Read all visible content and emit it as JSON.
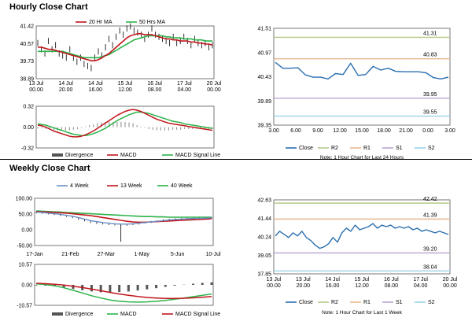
{
  "sections": {
    "hourly_title": "Hourly Close Chart",
    "weekly_title": "Weekly Close Chart"
  },
  "colors": {
    "close": "#2a6eb0",
    "ma_short": "#c0161c",
    "ma_long": "#2db34a",
    "r2": "#b5c98a",
    "r1": "#e6b88f",
    "s1": "#b9a5cf",
    "s2": "#9ad3e6",
    "divergence": "#9b9b9b",
    "dark_bar": "#555555"
  },
  "chart_data": [
    {
      "id": "hourly_price",
      "type": "line",
      "legend": [
        "20 Hr MA",
        "50 Hrs MA"
      ],
      "y_ticks": [
        "41.42",
        "40.57",
        "39.73",
        "38.89"
      ],
      "x_ticks": [
        "13 Jul\n00.00",
        "14 Jul\n20.00",
        "14 Jul\n16.00",
        "15 Jul\n12.00",
        "16 Jul\n08.00",
        "17 Jul\n04.00",
        "20 Jul\n00.00"
      ],
      "ylim": [
        38.89,
        41.42
      ],
      "series": [
        {
          "name": "Price",
          "values": [
            40.6,
            40.3,
            40.1,
            40.7,
            40.3,
            40.5,
            40.1,
            40.0,
            39.9,
            40.3,
            39.9,
            39.7,
            39.9,
            39.6,
            39.5,
            39.4,
            39.9,
            40.2,
            40.0,
            40.4,
            40.8,
            40.5,
            40.9,
            41.2,
            41.0,
            41.3,
            41.4,
            41.2,
            41.1,
            41.0,
            40.8,
            41.0,
            41.3,
            41.0,
            40.9,
            40.8,
            40.7,
            40.6,
            40.9,
            40.6,
            40.7,
            40.9,
            40.7,
            40.5,
            40.8,
            40.6,
            40.5,
            40.6,
            40.4,
            40.5
          ]
        },
        {
          "name": "20 Hr MA",
          "values": [
            40.4,
            40.4,
            40.35,
            40.3,
            40.3,
            40.25,
            40.2,
            40.15,
            40.1,
            40.05,
            40.0,
            39.95,
            39.9,
            39.85,
            39.8,
            39.75,
            39.75,
            39.8,
            39.9,
            40.0,
            40.1,
            40.25,
            40.4,
            40.55,
            40.7,
            40.85,
            40.95,
            41.0,
            41.05,
            41.05,
            41.0,
            41.0,
            41.0,
            40.95,
            40.9,
            40.85,
            40.8,
            40.8,
            40.75,
            40.75,
            40.7,
            40.7,
            40.7,
            40.65,
            40.65,
            40.6,
            40.6,
            40.55,
            40.55,
            40.5
          ]
        },
        {
          "name": "50 Hrs MA",
          "values": [
            40.2,
            40.2,
            40.2,
            40.2,
            40.2,
            40.2,
            40.2,
            40.2,
            40.15,
            40.1,
            40.05,
            40.0,
            39.95,
            39.9,
            39.9,
            39.9,
            39.9,
            39.9,
            39.95,
            40.0,
            40.05,
            40.15,
            40.25,
            40.35,
            40.45,
            40.55,
            40.65,
            40.75,
            40.8,
            40.85,
            40.9,
            40.95,
            40.95,
            40.95,
            40.95,
            40.95,
            40.9,
            40.9,
            40.85,
            40.85,
            40.85,
            40.8,
            40.8,
            40.8,
            40.75,
            40.75,
            40.75,
            40.7,
            40.7,
            40.7
          ]
        }
      ]
    },
    {
      "id": "hourly_macd",
      "type": "line",
      "legend": [
        "Divergence",
        "MACD",
        "MACD Signal Line"
      ],
      "y_ticks": [
        "0.32",
        "0.00",
        "-0.32"
      ],
      "ylim": [
        -0.32,
        0.32
      ],
      "series": [
        {
          "name": "MACD",
          "values": [
            0.03,
            0.02,
            0.0,
            -0.03,
            -0.06,
            -0.08,
            -0.1,
            -0.12,
            -0.14,
            -0.15,
            -0.15,
            -0.14,
            -0.12,
            -0.09,
            -0.06,
            -0.02,
            0.02,
            0.06,
            0.1,
            0.14,
            0.18,
            0.21,
            0.24,
            0.26,
            0.27,
            0.26,
            0.24,
            0.21,
            0.18,
            0.15,
            0.12,
            0.1,
            0.08,
            0.06,
            0.05,
            0.04,
            0.03,
            0.02,
            0.01,
            0.0,
            -0.01,
            -0.02,
            -0.03,
            -0.04,
            -0.05
          ]
        },
        {
          "name": "MACD Signal Line",
          "values": [
            0.05,
            0.04,
            0.03,
            0.01,
            -0.01,
            -0.03,
            -0.05,
            -0.07,
            -0.09,
            -0.11,
            -0.12,
            -0.13,
            -0.13,
            -0.12,
            -0.1,
            -0.08,
            -0.05,
            -0.02,
            0.02,
            0.06,
            0.1,
            0.13,
            0.16,
            0.19,
            0.21,
            0.23,
            0.23,
            0.22,
            0.21,
            0.19,
            0.17,
            0.15,
            0.13,
            0.11,
            0.09,
            0.08,
            0.07,
            0.05,
            0.04,
            0.03,
            0.02,
            0.01,
            0.0,
            -0.01,
            -0.02
          ]
        },
        {
          "name": "Divergence",
          "values": [
            -0.02,
            -0.02,
            -0.03,
            -0.04,
            -0.05,
            -0.05,
            -0.05,
            -0.05,
            -0.05,
            -0.04,
            -0.03,
            -0.01,
            0.01,
            0.03,
            0.04,
            0.06,
            0.07,
            0.08,
            0.08,
            0.08,
            0.08,
            0.08,
            0.08,
            0.07,
            0.06,
            0.03,
            0.01,
            -0.01,
            -0.03,
            -0.04,
            -0.05,
            -0.05,
            -0.05,
            -0.05,
            -0.04,
            -0.04,
            -0.04,
            -0.03,
            -0.03,
            -0.03,
            -0.03,
            -0.03,
            -0.03,
            -0.03,
            -0.03
          ]
        }
      ]
    },
    {
      "id": "hourly_pivot",
      "type": "line",
      "y_ticks": [
        "41.51",
        "40.97",
        "40.43",
        "39.89",
        "39.35"
      ],
      "ylim": [
        39.35,
        41.51
      ],
      "x_ticks": [
        "3.00",
        "6.00",
        "9.00",
        "12.00",
        "15.00",
        "18.00",
        "21.00",
        "0.00",
        "3.00"
      ],
      "levels": [
        {
          "name": "R2",
          "value": 41.31,
          "label": "41.31"
        },
        {
          "name": "R1",
          "value": 40.83,
          "label": "40.83"
        },
        {
          "name": "S1",
          "value": 39.95,
          "label": "39.95"
        },
        {
          "name": "S2",
          "value": 39.55,
          "label": "39.55"
        }
      ],
      "close": [
        40.75,
        40.62,
        40.62,
        40.63,
        40.47,
        40.42,
        40.42,
        40.38,
        40.5,
        40.48,
        40.73,
        40.46,
        40.48,
        40.66,
        40.58,
        40.62,
        40.55,
        40.54,
        40.54,
        40.54,
        40.52,
        40.41,
        40.38,
        40.42
      ],
      "legend": [
        "Close",
        "R2",
        "R1",
        "S1",
        "S2"
      ],
      "note": "Note: 1 Hour Chart for Last 24 Hours"
    },
    {
      "id": "weekly_price",
      "type": "line",
      "legend": [
        "4 Week",
        "13 Week",
        "40 Week"
      ],
      "y_ticks": [
        "100.00",
        "50.00",
        "0.00",
        "-50.00"
      ],
      "x_ticks": [
        "17-Jan",
        "21-Feb",
        "27-Mar",
        "1-May",
        "5-Jun",
        "10-Jul"
      ],
      "ylim": [
        -50,
        100
      ],
      "series": [
        {
          "name": "Price",
          "values": [
            55,
            54,
            52,
            50,
            47,
            44,
            40,
            35,
            30,
            25,
            22,
            20,
            18,
            17,
            15,
            16,
            18,
            20,
            23,
            25,
            27,
            30,
            32,
            33,
            34,
            35,
            36,
            36,
            37,
            38
          ]
        },
        {
          "name": "4 Week",
          "values": [
            56,
            55,
            53,
            51,
            49,
            46,
            43,
            39,
            34,
            29,
            26,
            23,
            21,
            19,
            18,
            18,
            19,
            21,
            23,
            25,
            27,
            29,
            31,
            33,
            34,
            35,
            36,
            36,
            37,
            38
          ]
        },
        {
          "name": "13 Week",
          "values": [
            58,
            57,
            56,
            55,
            54,
            53,
            51,
            49,
            47,
            45,
            42,
            39,
            36,
            33,
            30,
            27,
            25,
            24,
            24,
            25,
            26,
            27,
            28,
            29,
            30,
            31,
            32,
            33,
            34,
            35
          ]
        },
        {
          "name": "40 Week",
          "values": [
            60,
            59,
            58,
            57,
            56,
            55,
            54,
            53,
            52,
            51,
            50,
            49,
            48,
            47,
            46,
            45,
            44,
            43,
            42,
            42,
            41,
            41,
            40,
            40,
            40,
            40,
            40,
            40,
            40,
            40
          ]
        }
      ]
    },
    {
      "id": "weekly_macd",
      "type": "line",
      "legend": [
        "Divergence",
        "MACD",
        "MACD Signal Line"
      ],
      "y_ticks": [
        "10.57",
        "0.00",
        "-10.57"
      ],
      "ylim": [
        -10.57,
        10.57
      ],
      "series": [
        {
          "name": "MACD",
          "values": [
            0.5,
            0.2,
            -0.5,
            -1.5,
            -2.8,
            -4.2,
            -5.6,
            -6.8,
            -7.8,
            -8.4,
            -8.8,
            -8.9,
            -8.8,
            -8.5,
            -8.0,
            -7.4,
            -6.8,
            -6.1,
            -5.4,
            -4.7
          ]
        },
        {
          "name": "MACD Signal Line",
          "values": [
            0.8,
            0.6,
            0.3,
            -0.1,
            -0.7,
            -1.4,
            -2.2,
            -3.0,
            -3.9,
            -4.7,
            -5.4,
            -6.0,
            -6.5,
            -6.8,
            -7.0,
            -7.0,
            -6.9,
            -6.7,
            -6.4,
            -6.0
          ]
        },
        {
          "name": "Divergence",
          "values": [
            -0.3,
            -0.4,
            -0.8,
            -1.4,
            -2.1,
            -2.8,
            -3.4,
            -3.8,
            -3.9,
            -3.7,
            -3.4,
            -2.9,
            -2.3,
            -1.7,
            -1.0,
            -0.4,
            0.1,
            0.6,
            1.0,
            1.3
          ]
        }
      ]
    },
    {
      "id": "weekly_pivot",
      "type": "line",
      "y_ticks": [
        "42.63",
        "41.44",
        "40.24",
        "39.05",
        "37.85"
      ],
      "ylim": [
        37.85,
        42.63
      ],
      "x_ticks": [
        "13 Jul\n00.00",
        "13 Jul\n20.00",
        "14 Jul\n16.00",
        "15 Jul\n12.00",
        "16 Jul\n08.00",
        "17 Jul\n04.00",
        "20 Jul\n00.00"
      ],
      "levels": [
        {
          "name": "R2",
          "value": 42.42,
          "label": "42.42"
        },
        {
          "name": "R1",
          "value": 41.39,
          "label": "41.39"
        },
        {
          "name": "S1",
          "value": 39.2,
          "label": "39.20"
        },
        {
          "name": "S2",
          "value": 38.04,
          "label": "38.04"
        }
      ],
      "close": [
        40.3,
        40.6,
        40.4,
        40.2,
        40.5,
        40.3,
        40.6,
        40.2,
        40.0,
        39.7,
        39.5,
        39.6,
        39.8,
        40.2,
        39.9,
        40.5,
        40.8,
        40.6,
        41.0,
        40.7,
        40.8,
        40.9,
        41.1,
        40.8,
        41.0,
        40.9,
        41.0,
        40.8,
        40.9,
        40.8,
        40.9,
        40.7,
        40.8,
        40.6,
        40.7,
        40.6,
        40.5,
        40.6,
        40.5,
        40.4
      ],
      "legend": [
        "Close",
        "R2",
        "R1",
        "S1",
        "S2"
      ],
      "note": "Note: 1 Hour Chart for Last 1 Week"
    }
  ]
}
